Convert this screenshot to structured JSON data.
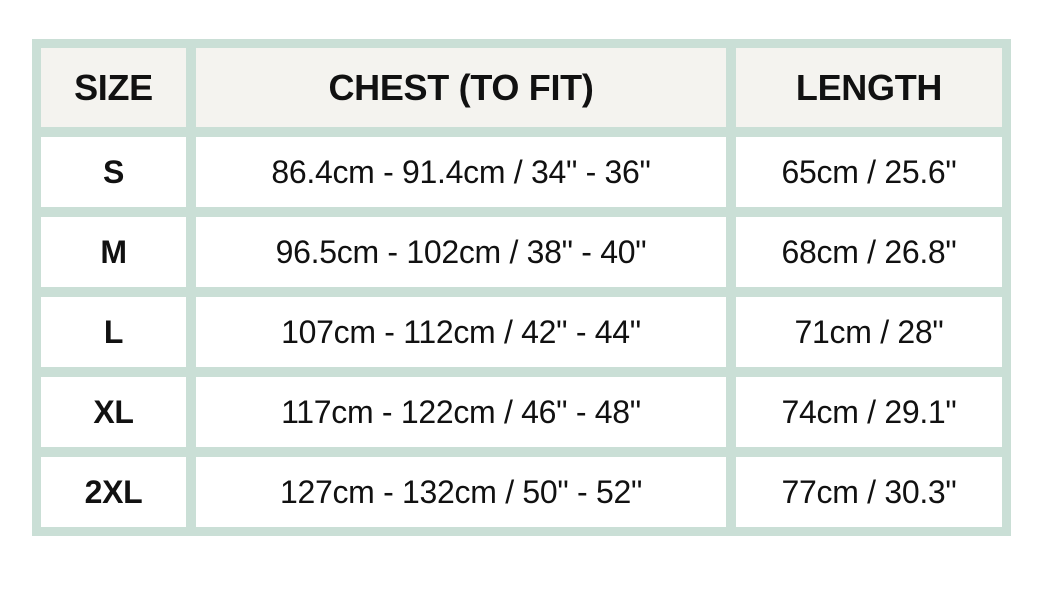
{
  "table": {
    "headers": [
      "SIZE",
      "CHEST (TO FIT)",
      "LENGTH"
    ],
    "rows": [
      [
        "S",
        "86.4cm - 91.4cm / 34\" - 36\"",
        "65cm / 25.6\""
      ],
      [
        "M",
        "96.5cm - 102cm / 38\" - 40\"",
        "68cm / 26.8\""
      ],
      [
        "L",
        "107cm - 112cm / 42\" - 44\"",
        "71cm / 28\""
      ],
      [
        "XL",
        "117cm - 122cm / 46\" - 48\"",
        "74cm / 29.1\""
      ],
      [
        "2XL",
        "127cm - 132cm / 50\" - 52\"",
        "77cm / 30.3\""
      ]
    ]
  },
  "colors": {
    "border": "#cadfd6",
    "header_bg": "#f4f3ef"
  }
}
